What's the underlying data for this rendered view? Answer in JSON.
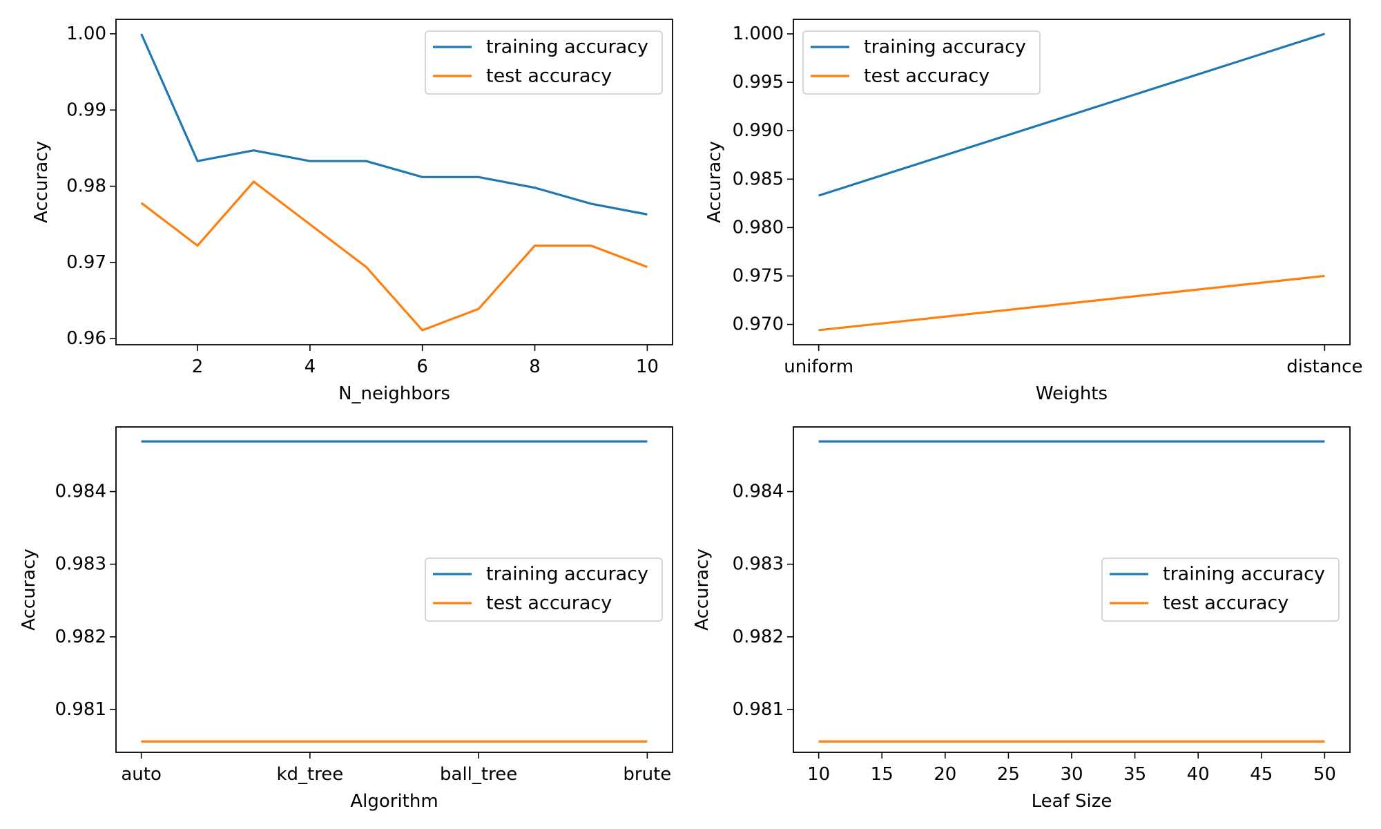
{
  "colors": {
    "training": "#1f77b4",
    "test": "#ff7f0e"
  },
  "chart_data": [
    {
      "type": "line",
      "xlabel": "N_neighbors",
      "ylabel": "Accuracy",
      "x_axis_kind": "numeric",
      "x": [
        1,
        2,
        3,
        4,
        5,
        6,
        7,
        8,
        9,
        10
      ],
      "xlim": [
        0.55,
        10.45
      ],
      "xticks": [
        2,
        4,
        6,
        8,
        10
      ],
      "xtick_labels": [
        "2",
        "4",
        "6",
        "8",
        "10"
      ],
      "ylim": [
        0.9592,
        1.0019
      ],
      "yticks": [
        0.96,
        0.97,
        0.98,
        0.99,
        1.0
      ],
      "ytick_labels": [
        "0.96",
        "0.97",
        "0.98",
        "0.99",
        "1.00"
      ],
      "legend_position": "upper right",
      "grid": false,
      "series": [
        {
          "name": "training accuracy",
          "color_key": "training",
          "values": [
            1.0,
            0.9833,
            0.9847,
            0.9833,
            0.9833,
            0.9812,
            0.9812,
            0.9798,
            0.9777,
            0.9763
          ]
        },
        {
          "name": "test accuracy",
          "color_key": "test",
          "values": [
            0.9778,
            0.9722,
            0.9806,
            0.975,
            0.9694,
            0.9611,
            0.9639,
            0.9722,
            0.9722,
            0.9694
          ]
        }
      ]
    },
    {
      "type": "line",
      "xlabel": "Weights",
      "ylabel": "Accuracy",
      "x_axis_kind": "categorical",
      "categories": [
        "uniform",
        "distance"
      ],
      "xlim": [
        -0.05,
        1.05
      ],
      "ylim": [
        0.9679,
        1.0015
      ],
      "yticks": [
        0.97,
        0.975,
        0.98,
        0.985,
        0.99,
        0.995,
        1.0
      ],
      "ytick_labels": [
        "0.970",
        "0.975",
        "0.980",
        "0.985",
        "0.990",
        "0.995",
        "1.000"
      ],
      "legend_position": "upper left",
      "grid": false,
      "series": [
        {
          "name": "training accuracy",
          "color_key": "training",
          "values": [
            0.9833,
            1.0
          ]
        },
        {
          "name": "test accuracy",
          "color_key": "test",
          "values": [
            0.9694,
            0.975
          ]
        }
      ]
    },
    {
      "type": "line",
      "xlabel": "Algorithm",
      "ylabel": "Accuracy",
      "x_axis_kind": "categorical",
      "categories": [
        "auto",
        "kd_tree",
        "ball_tree",
        "brute"
      ],
      "xlim": [
        -0.15,
        3.15
      ],
      "ylim": [
        0.98041,
        0.98489
      ],
      "yticks": [
        0.981,
        0.982,
        0.983,
        0.984
      ],
      "ytick_labels": [
        "0.981",
        "0.982",
        "0.983",
        "0.984"
      ],
      "legend_position": "center right",
      "grid": false,
      "series": [
        {
          "name": "training accuracy",
          "color_key": "training",
          "values": [
            0.98469,
            0.98469,
            0.98469,
            0.98469
          ]
        },
        {
          "name": "test accuracy",
          "color_key": "test",
          "values": [
            0.98056,
            0.98056,
            0.98056,
            0.98056
          ]
        }
      ]
    },
    {
      "type": "line",
      "xlabel": "Leaf Size",
      "ylabel": "Accuracy",
      "x_axis_kind": "numeric",
      "x": [
        10,
        20,
        30,
        40,
        50
      ],
      "xlim": [
        8.0,
        52.0
      ],
      "xticks": [
        10,
        15,
        20,
        25,
        30,
        35,
        40,
        45,
        50
      ],
      "xtick_labels": [
        "10",
        "15",
        "20",
        "25",
        "30",
        "35",
        "40",
        "45",
        "50"
      ],
      "ylim": [
        0.98041,
        0.98489
      ],
      "yticks": [
        0.981,
        0.982,
        0.983,
        0.984
      ],
      "ytick_labels": [
        "0.981",
        "0.982",
        "0.983",
        "0.984"
      ],
      "legend_position": "center right",
      "grid": false,
      "series": [
        {
          "name": "training accuracy",
          "color_key": "training",
          "values": [
            0.98469,
            0.98469,
            0.98469,
            0.98469,
            0.98469
          ]
        },
        {
          "name": "test accuracy",
          "color_key": "test",
          "values": [
            0.98056,
            0.98056,
            0.98056,
            0.98056,
            0.98056
          ]
        }
      ]
    }
  ]
}
